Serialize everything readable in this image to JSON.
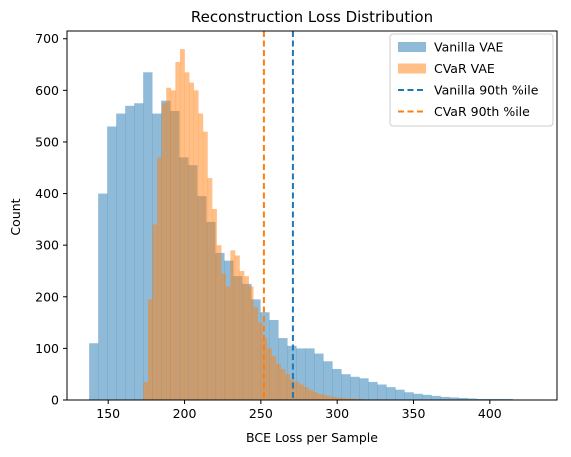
{
  "chart_data": {
    "type": "histogram",
    "title": "Reconstruction Loss Distribution",
    "xlabel": "BCE Loss per Sample",
    "ylabel": "Count",
    "xlim": [
      123,
      444
    ],
    "ylim": [
      0,
      715
    ],
    "xticks": [
      150,
      200,
      250,
      300,
      350,
      400
    ],
    "yticks": [
      0,
      100,
      200,
      300,
      400,
      500,
      600,
      700
    ],
    "legend_position": "top-right",
    "series": [
      {
        "name": "Vanilla VAE",
        "color": "#1f77b4",
        "alpha": 0.5,
        "bin_edges": [
          137.5,
          143.4,
          149.3,
          155.2,
          161.1,
          167.0,
          172.9,
          178.8,
          184.7,
          190.6,
          196.5,
          202.4,
          208.3,
          214.2,
          220.1,
          226.0,
          231.9,
          237.8,
          243.7,
          249.6,
          255.5,
          261.4,
          267.3,
          273.2,
          279.1,
          285.0,
          290.9,
          296.8,
          302.7,
          308.6,
          314.5,
          320.4,
          326.3,
          332.2,
          338.1,
          344.0,
          349.9,
          355.8,
          361.7,
          367.6,
          373.5,
          379.4,
          385.3,
          391.2,
          397.1,
          403.0,
          408.9,
          414.8,
          420.7,
          426.6,
          432.5
        ],
        "values": [
          110,
          400,
          530,
          555,
          570,
          575,
          635,
          555,
          580,
          560,
          470,
          455,
          395,
          345,
          285,
          270,
          240,
          225,
          195,
          170,
          155,
          120,
          105,
          100,
          100,
          90,
          75,
          60,
          50,
          45,
          42,
          35,
          30,
          25,
          20,
          15,
          12,
          10,
          8,
          6,
          5,
          4,
          3,
          2,
          2,
          2,
          2,
          1,
          1,
          1
        ]
      },
      {
        "name": "CVaR VAE",
        "color": "#ff7f0e",
        "alpha": 0.5,
        "bin_edges": [
          173.0,
          176.0,
          179.0,
          182.0,
          185.0,
          188.0,
          191.0,
          194.0,
          197.0,
          200.0,
          203.0,
          206.0,
          209.0,
          212.0,
          215.0,
          218.0,
          221.0,
          224.0,
          227.0,
          230.0,
          233.0,
          236.0,
          239.0,
          242.0,
          245.0,
          248.0,
          251.0,
          254.0,
          257.0,
          260.0,
          263.0,
          266.0,
          269.0,
          272.0,
          275.0,
          278.0,
          281.0,
          284.0,
          287.0,
          290.0,
          293.0,
          296.0,
          299.0,
          302.0,
          305.0,
          308.0,
          311.0,
          314.0,
          317.0,
          320.0,
          323.0
        ],
        "values": [
          35,
          195,
          340,
          470,
          575,
          605,
          600,
          655,
          680,
          635,
          615,
          600,
          555,
          520,
          430,
          370,
          300,
          245,
          220,
          290,
          280,
          250,
          240,
          220,
          180,
          150,
          120,
          100,
          85,
          70,
          60,
          50,
          40,
          35,
          30,
          25,
          20,
          15,
          12,
          10,
          8,
          6,
          5,
          4,
          3,
          3,
          2,
          2,
          1,
          1
        ]
      }
    ],
    "vlines": [
      {
        "name": "Vanilla 90th %ile",
        "x": 271,
        "color": "#1f77b4",
        "style": "dashed"
      },
      {
        "name": "CVaR 90th %ile",
        "x": 252,
        "color": "#ff7f0e",
        "style": "dashed"
      }
    ]
  }
}
